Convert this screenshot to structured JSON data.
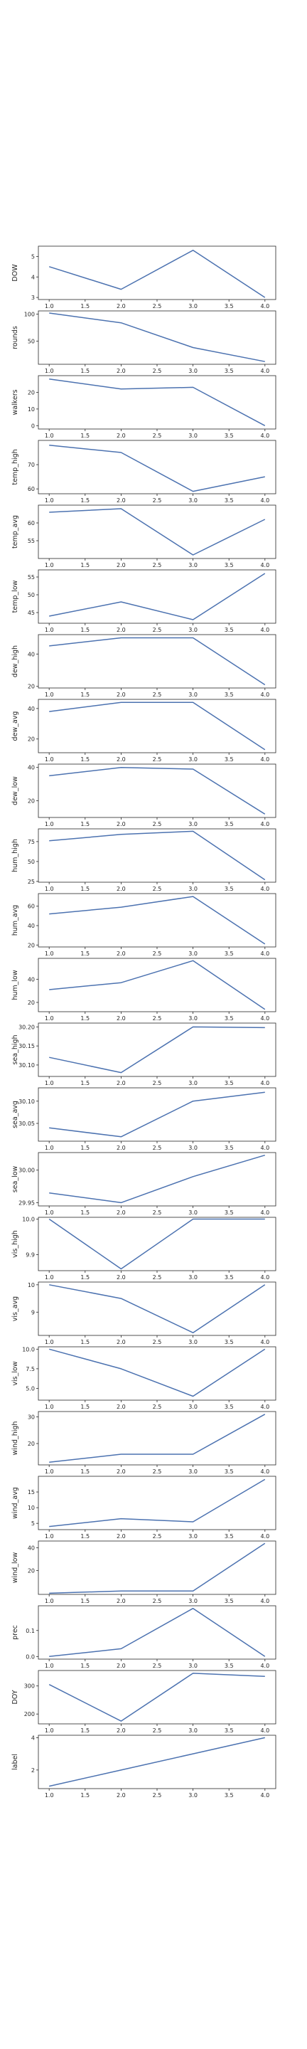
{
  "chart_data": {
    "type": "line",
    "layout": "stacked-subplots-shared-x",
    "x": [
      1,
      2,
      3,
      4
    ],
    "xticks": [
      "1.0",
      "1.5",
      "2.0",
      "2.5",
      "3.0",
      "3.5",
      "4.0"
    ],
    "xlim": [
      0.85,
      4.15
    ],
    "line_color": "#4c72b0",
    "grid": false,
    "title": "",
    "panels": [
      {
        "ylabel": "DOW",
        "values": [
          4.5,
          3.4,
          5.3,
          3.0
        ],
        "ylim": [
          2.9,
          5.5
        ],
        "yticks": [
          3,
          4,
          5
        ]
      },
      {
        "ylabel": "rounds",
        "values": [
          102,
          84,
          38,
          12
        ],
        "ylim": [
          7,
          106
        ],
        "yticks": [
          50,
          100
        ]
      },
      {
        "ylabel": "walkers",
        "values": [
          28,
          22,
          23,
          0
        ],
        "ylim": [
          -2,
          30
        ],
        "yticks": [
          0,
          10,
          20
        ]
      },
      {
        "ylabel": "temp_high",
        "values": [
          78,
          75,
          59,
          65
        ],
        "ylim": [
          58,
          80
        ],
        "yticks": [
          60,
          70
        ]
      },
      {
        "ylabel": "temp_avg",
        "values": [
          63,
          64,
          51,
          61
        ],
        "ylim": [
          50,
          65
        ],
        "yticks": [
          55,
          60
        ]
      },
      {
        "ylabel": "temp_low",
        "values": [
          44,
          48,
          43,
          56
        ],
        "ylim": [
          42,
          57
        ],
        "yticks": [
          45,
          50,
          55
        ]
      },
      {
        "ylabel": "dew_high",
        "values": [
          45,
          50,
          50,
          21
        ],
        "ylim": [
          19,
          52
        ],
        "yticks": [
          20,
          40
        ]
      },
      {
        "ylabel": "dew_avg",
        "values": [
          38,
          44,
          44,
          13
        ],
        "ylim": [
          11,
          46
        ],
        "yticks": [
          20,
          40
        ]
      },
      {
        "ylabel": "dew_low",
        "values": [
          35,
          40,
          39,
          12
        ],
        "ylim": [
          10,
          42
        ],
        "yticks": [
          20,
          40
        ]
      },
      {
        "ylabel": "hum_high",
        "values": [
          76,
          84,
          88,
          27
        ],
        "ylim": [
          24,
          91
        ],
        "yticks": [
          25,
          50,
          75
        ]
      },
      {
        "ylabel": "hum_avg",
        "values": [
          52,
          59,
          70,
          21
        ],
        "ylim": [
          18,
          73
        ],
        "yticks": [
          20,
          40,
          60
        ]
      },
      {
        "ylabel": "hum_low",
        "values": [
          31,
          37,
          56,
          14
        ],
        "ylim": [
          12,
          58
        ],
        "yticks": [
          20,
          40
        ]
      },
      {
        "ylabel": "sea_high",
        "values": [
          30.12,
          30.08,
          30.2,
          30.198
        ],
        "ylim": [
          30.07,
          30.21
        ],
        "yticks": [
          "30.10",
          "30.15",
          "30.20"
        ]
      },
      {
        "ylabel": "sea_avg",
        "values": [
          30.04,
          30.02,
          30.1,
          30.12
        ],
        "ylim": [
          30.01,
          30.13
        ],
        "yticks": [
          "30.05",
          "30.10"
        ]
      },
      {
        "ylabel": "sea_low",
        "values": [
          29.965,
          29.95,
          29.99,
          30.023
        ],
        "ylim": [
          29.945,
          30.027
        ],
        "yticks": [
          "29.95",
          "30.00"
        ]
      },
      {
        "ylabel": "vis_high",
        "values": [
          10.0,
          9.86,
          10.0,
          10.0
        ],
        "ylim": [
          9.855,
          10.005
        ],
        "yticks": [
          "9.9",
          "10.0"
        ]
      },
      {
        "ylabel": "vis_avg",
        "values": [
          10.0,
          9.5,
          8.25,
          10.0
        ],
        "ylim": [
          8.15,
          10.1
        ],
        "yticks": [
          9,
          10
        ]
      },
      {
        "ylabel": "vis_low",
        "values": [
          10.0,
          7.5,
          4.0,
          10.0
        ],
        "ylim": [
          3.5,
          10.3
        ],
        "yticks": [
          "5.0",
          "7.5",
          "10.0"
        ]
      },
      {
        "ylabel": "wind_high",
        "values": [
          13,
          16,
          16,
          31
        ],
        "ylim": [
          12,
          32
        ],
        "yticks": [
          20,
          30
        ]
      },
      {
        "ylabel": "wind_avg",
        "values": [
          4,
          6.5,
          5.5,
          19
        ],
        "ylim": [
          3,
          20
        ],
        "yticks": [
          5,
          10,
          15
        ]
      },
      {
        "ylabel": "wind_low",
        "values": [
          0,
          2,
          2,
          44
        ],
        "ylim": [
          -1,
          46
        ],
        "yticks": [
          20,
          40
        ]
      },
      {
        "ylabel": "prec",
        "values": [
          0.0,
          0.03,
          0.185,
          0.0
        ],
        "ylim": [
          -0.01,
          0.195
        ],
        "yticks": [
          "0.0",
          "0.1"
        ]
      },
      {
        "ylabel": "DOY",
        "values": [
          305,
          175,
          345,
          334
        ],
        "ylim": [
          165,
          355
        ],
        "yticks": [
          200,
          300
        ]
      },
      {
        "ylabel": "label",
        "values": [
          1,
          2,
          3,
          4
        ],
        "ylim": [
          0.85,
          4.15
        ],
        "yticks": [
          2,
          4
        ]
      }
    ]
  }
}
